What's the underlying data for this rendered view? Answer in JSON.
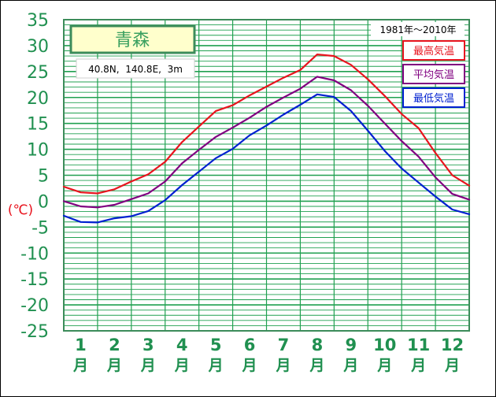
{
  "chart_data": {
    "type": "line",
    "title": "青森",
    "subtitle": "40.8N,  140.8E,  3m",
    "period": "1981年～2010年",
    "ylabel": "(℃)",
    "ylim": [
      -25,
      35
    ],
    "yticks": [
      -25,
      -20,
      -15,
      -10,
      -5,
      0,
      5,
      10,
      15,
      20,
      25,
      30,
      35
    ],
    "xlim": [
      0,
      12
    ],
    "month_numbers": [
      "1",
      "2",
      "3",
      "4",
      "5",
      "6",
      "7",
      "8",
      "9",
      "10",
      "11",
      "12"
    ],
    "month_suffix": "月",
    "legend_position": "top-right",
    "grid": true,
    "x": [
      0,
      0.5,
      1,
      1.5,
      2,
      2.5,
      3,
      3.5,
      4,
      4.5,
      5,
      5.5,
      6,
      6.5,
      7,
      7.5,
      8,
      8.5,
      9,
      9.5,
      10,
      10.5,
      11,
      11.5,
      12
    ],
    "series": [
      {
        "name": "最高気温",
        "color": "#e8141e",
        "values": [
          2.8,
          1.7,
          1.5,
          2.3,
          3.8,
          5.2,
          7.6,
          11.4,
          14.4,
          17.4,
          18.5,
          20.4,
          22.1,
          23.8,
          25.3,
          28.3,
          28.0,
          26.3,
          23.5,
          20.3,
          16.8,
          14.1,
          9.3,
          5.0,
          3.0
        ]
      },
      {
        "name": "平均気温",
        "color": "#800080",
        "values": [
          0.0,
          -1.0,
          -1.2,
          -0.7,
          0.4,
          1.5,
          3.8,
          7.3,
          9.9,
          12.4,
          14.2,
          16.1,
          18.2,
          20.0,
          21.7,
          24.0,
          23.3,
          21.4,
          18.4,
          15.0,
          11.6,
          8.6,
          4.6,
          1.4,
          0.3
        ]
      },
      {
        "name": "最低気温",
        "color": "#0020d0",
        "values": [
          -2.8,
          -4.0,
          -4.1,
          -3.3,
          -2.9,
          -1.9,
          0.2,
          3.1,
          5.7,
          8.3,
          10.1,
          12.7,
          14.6,
          16.7,
          18.6,
          20.6,
          20.1,
          17.4,
          13.6,
          9.7,
          6.3,
          3.6,
          0.9,
          -1.6,
          -2.5
        ]
      }
    ]
  },
  "colors": {
    "grid": "#20a050",
    "axis_text": "#209050",
    "ylabel_color": "#e8141e",
    "title_box_fill": "#ffffcc"
  }
}
